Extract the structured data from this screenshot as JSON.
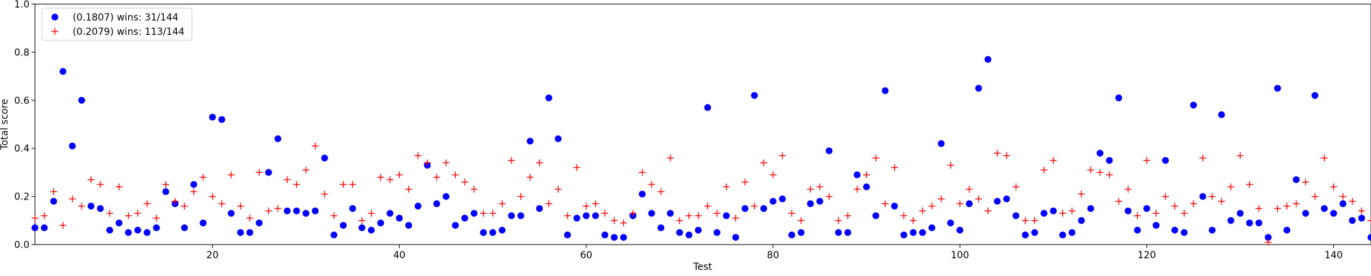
{
  "chart_data": {
    "type": "scatter",
    "title": "",
    "xlabel": "Test",
    "ylabel": "Total score",
    "xlim": [
      1,
      144
    ],
    "ylim": [
      0,
      1.0
    ],
    "xticks": [
      20,
      40,
      60,
      80,
      100,
      120,
      140
    ],
    "yticks": [
      0.0,
      0.2,
      0.4,
      0.6,
      0.8,
      1.0
    ],
    "xtick_labels": [
      "20",
      "40",
      "60",
      "80",
      "100",
      "120",
      "140"
    ],
    "ytick_labels": [
      "0.0",
      "0.2",
      "0.4",
      "0.6",
      "0.8",
      "1.0"
    ],
    "grid": false,
    "legend_position": "top-left",
    "series": [
      {
        "name": "(0.1807) wins: 31/144",
        "marker": "circle",
        "color": "#0000ff",
        "x": [
          1,
          2,
          3,
          4,
          5,
          6,
          7,
          8,
          9,
          10,
          11,
          12,
          13,
          14,
          15,
          16,
          17,
          18,
          19,
          20,
          21,
          22,
          23,
          24,
          25,
          26,
          27,
          28,
          29,
          30,
          31,
          32,
          33,
          34,
          35,
          36,
          37,
          38,
          39,
          40,
          41,
          42,
          43,
          44,
          45,
          46,
          47,
          48,
          49,
          50,
          51,
          52,
          53,
          54,
          55,
          56,
          57,
          58,
          59,
          60,
          61,
          62,
          63,
          64,
          65,
          66,
          67,
          68,
          69,
          70,
          71,
          72,
          73,
          74,
          75,
          76,
          77,
          78,
          79,
          80,
          81,
          82,
          83,
          84,
          85,
          86,
          87,
          88,
          89,
          90,
          91,
          92,
          93,
          94,
          95,
          96,
          97,
          98,
          99,
          100,
          101,
          102,
          103,
          104,
          105,
          106,
          107,
          108,
          109,
          110,
          111,
          112,
          113,
          114,
          115,
          116,
          117,
          118,
          119,
          120,
          121,
          122,
          123,
          124,
          125,
          126,
          127,
          128,
          129,
          130,
          131,
          132,
          133,
          134,
          135,
          136,
          137,
          138,
          139,
          140,
          141,
          142,
          143,
          144
        ],
        "y": [
          0.07,
          0.07,
          0.18,
          0.72,
          0.41,
          0.6,
          0.16,
          0.15,
          0.06,
          0.09,
          0.05,
          0.06,
          0.05,
          0.07,
          0.22,
          0.17,
          0.07,
          0.25,
          0.09,
          0.53,
          0.52,
          0.13,
          0.05,
          0.05,
          0.09,
          0.3,
          0.44,
          0.14,
          0.14,
          0.13,
          0.14,
          0.36,
          0.04,
          0.08,
          0.15,
          0.07,
          0.06,
          0.09,
          0.13,
          0.11,
          0.08,
          0.16,
          0.33,
          0.17,
          0.2,
          0.08,
          0.11,
          0.13,
          0.05,
          0.05,
          0.06,
          0.12,
          0.12,
          0.43,
          0.15,
          0.61,
          0.44,
          0.04,
          0.11,
          0.12,
          0.12,
          0.04,
          0.03,
          0.03,
          0.12,
          0.21,
          0.13,
          0.07,
          0.13,
          0.05,
          0.04,
          0.06,
          0.57,
          0.05,
          0.12,
          0.03,
          0.15,
          0.62,
          0.15,
          0.18,
          0.19,
          0.04,
          0.05,
          0.17,
          0.18,
          0.39,
          0.05,
          0.05,
          0.29,
          0.24,
          0.12,
          0.64,
          0.16,
          0.04,
          0.05,
          0.05,
          0.07,
          0.42,
          0.09,
          0.06,
          0.17,
          0.65,
          0.77,
          0.18,
          0.19,
          0.12,
          0.04,
          0.05,
          0.13,
          0.14,
          0.04,
          0.05,
          0.1,
          0.15,
          0.38,
          0.35,
          0.61,
          0.14,
          0.06,
          0.15,
          0.08,
          0.35,
          0.06,
          0.05,
          0.58,
          0.2,
          0.06,
          0.54,
          0.1,
          0.13,
          0.09,
          0.09,
          0.03,
          0.65,
          0.06,
          0.27,
          0.13,
          0.62,
          0.15,
          0.13,
          0.17,
          0.1,
          0.11,
          0.03
        ]
      },
      {
        "name": "(0.2079) wins: 113/144",
        "marker": "plus",
        "color": "#ff0000",
        "x": [
          1,
          2,
          3,
          4,
          5,
          6,
          7,
          8,
          9,
          10,
          11,
          12,
          13,
          14,
          15,
          16,
          17,
          18,
          19,
          20,
          21,
          22,
          23,
          24,
          25,
          26,
          27,
          28,
          29,
          30,
          31,
          32,
          33,
          34,
          35,
          36,
          37,
          38,
          39,
          40,
          41,
          42,
          43,
          44,
          45,
          46,
          47,
          48,
          49,
          50,
          51,
          52,
          53,
          54,
          55,
          56,
          57,
          58,
          59,
          60,
          61,
          62,
          63,
          64,
          65,
          66,
          67,
          68,
          69,
          70,
          71,
          72,
          73,
          74,
          75,
          76,
          77,
          78,
          79,
          80,
          81,
          82,
          83,
          84,
          85,
          86,
          87,
          88,
          89,
          90,
          91,
          92,
          93,
          94,
          95,
          96,
          97,
          98,
          99,
          100,
          101,
          102,
          103,
          104,
          105,
          106,
          107,
          108,
          109,
          110,
          111,
          112,
          113,
          114,
          115,
          116,
          117,
          118,
          119,
          120,
          121,
          122,
          123,
          124,
          125,
          126,
          127,
          128,
          129,
          130,
          131,
          132,
          133,
          134,
          135,
          136,
          137,
          138,
          139,
          140,
          141,
          142,
          143,
          144
        ],
        "y": [
          0.11,
          0.12,
          0.22,
          0.08,
          0.19,
          0.16,
          0.27,
          0.25,
          0.13,
          0.24,
          0.12,
          0.13,
          0.17,
          0.11,
          0.25,
          0.18,
          0.16,
          0.22,
          0.28,
          0.2,
          0.17,
          0.29,
          0.16,
          0.11,
          0.3,
          0.14,
          0.15,
          0.27,
          0.25,
          0.31,
          0.41,
          0.21,
          0.12,
          0.25,
          0.25,
          0.1,
          0.13,
          0.28,
          0.27,
          0.29,
          0.23,
          0.37,
          0.34,
          0.28,
          0.34,
          0.29,
          0.26,
          0.23,
          0.13,
          0.13,
          0.17,
          0.35,
          0.2,
          0.28,
          0.34,
          0.17,
          0.23,
          0.12,
          0.32,
          0.16,
          0.17,
          0.13,
          0.1,
          0.09,
          0.13,
          0.3,
          0.25,
          0.22,
          0.36,
          0.1,
          0.12,
          0.12,
          0.16,
          0.13,
          0.24,
          0.11,
          0.26,
          0.16,
          0.34,
          0.29,
          0.37,
          0.13,
          0.1,
          0.23,
          0.24,
          0.2,
          0.1,
          0.12,
          0.23,
          0.29,
          0.36,
          0.17,
          0.32,
          0.12,
          0.1,
          0.14,
          0.16,
          0.19,
          0.33,
          0.17,
          0.23,
          0.19,
          0.14,
          0.38,
          0.37,
          0.24,
          0.1,
          0.1,
          0.31,
          0.35,
          0.13,
          0.14,
          0.21,
          0.31,
          0.3,
          0.29,
          0.18,
          0.23,
          0.12,
          0.35,
          0.13,
          0.2,
          0.16,
          0.13,
          0.17,
          0.36,
          0.2,
          0.18,
          0.24,
          0.37,
          0.25,
          0.15,
          0.01,
          0.15,
          0.16,
          0.17,
          0.26,
          0.2,
          0.36,
          0.24,
          0.2,
          0.18,
          0.14,
          0.1
        ]
      }
    ]
  }
}
